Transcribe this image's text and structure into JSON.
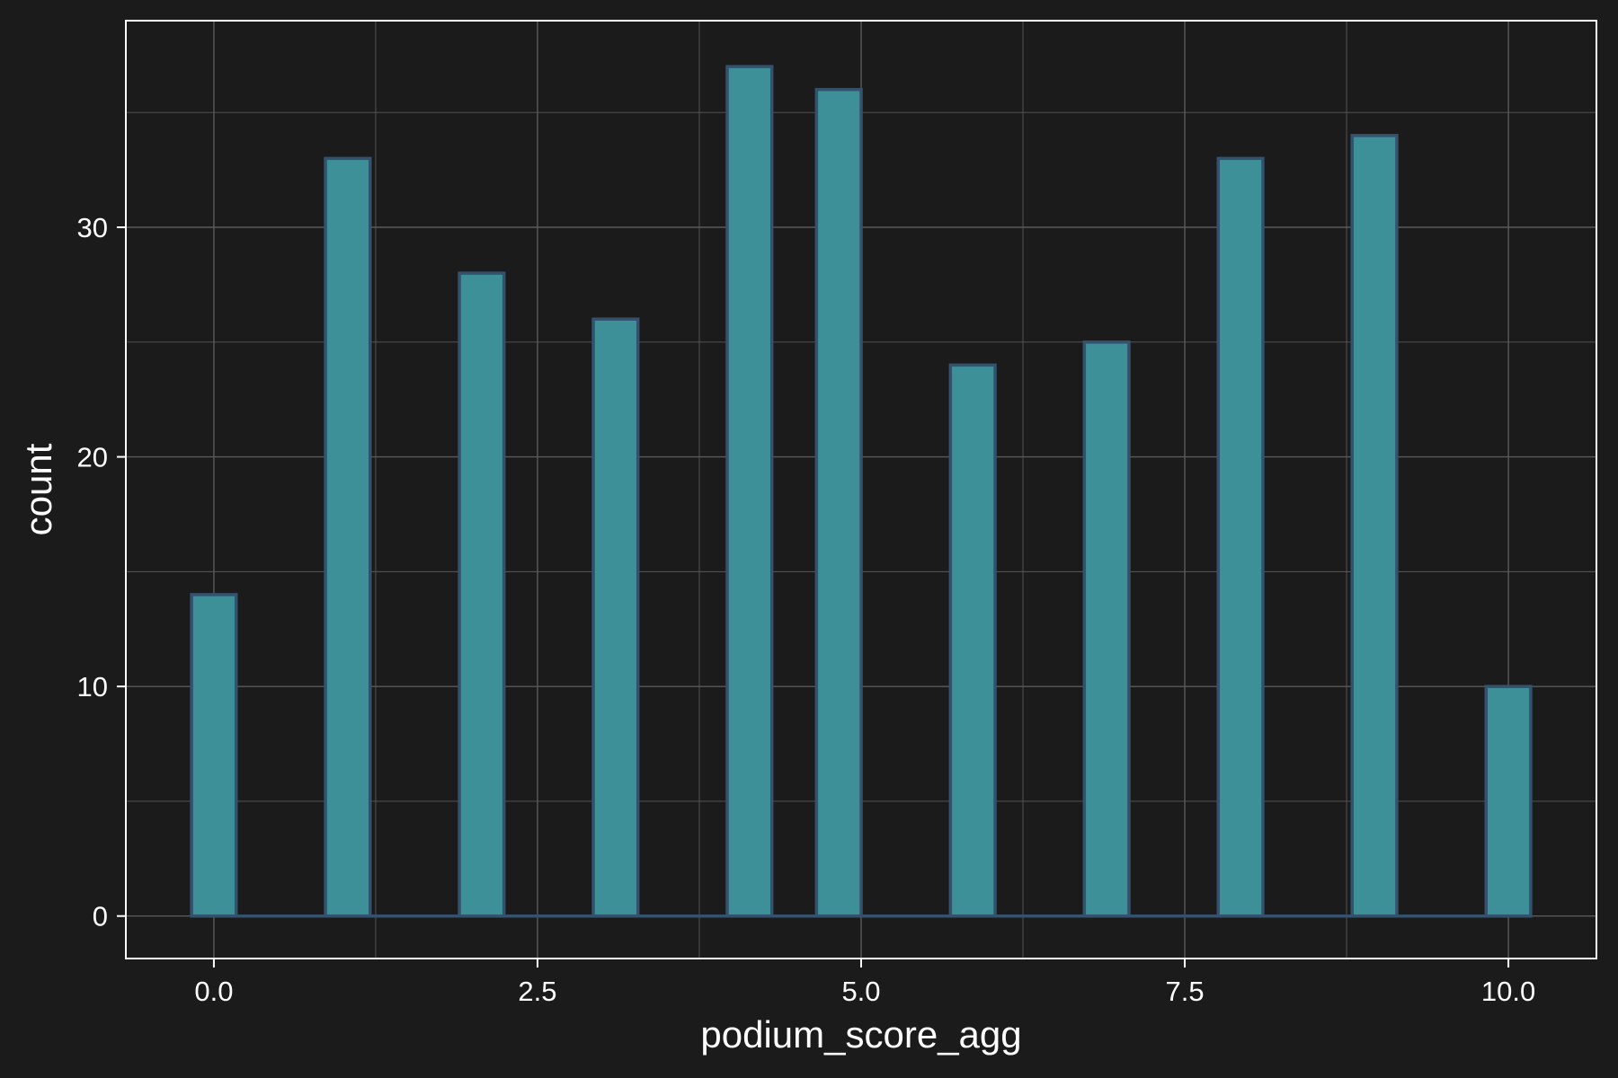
{
  "chart_data": {
    "type": "bar",
    "title": "",
    "xlabel": "podium_score_agg",
    "ylabel": "count",
    "x": [
      0,
      1,
      2,
      3,
      4,
      5,
      6,
      7,
      8,
      9,
      10
    ],
    "values": [
      14,
      33,
      28,
      26,
      37,
      36,
      24,
      25,
      33,
      34,
      10
    ],
    "bins": [
      {
        "start": -0.1724,
        "end": 0.1724,
        "count": 14
      },
      {
        "start": 0.8621,
        "end": 1.2069,
        "count": 33
      },
      {
        "start": 1.8966,
        "end": 2.2414,
        "count": 28
      },
      {
        "start": 2.931,
        "end": 3.2759,
        "count": 26
      },
      {
        "start": 3.9655,
        "end": 4.3103,
        "count": 37
      },
      {
        "start": 4.6552,
        "end": 5.0,
        "count": 36
      },
      {
        "start": 5.6897,
        "end": 6.0345,
        "count": 24
      },
      {
        "start": 6.7241,
        "end": 7.069,
        "count": 25
      },
      {
        "start": 7.7586,
        "end": 8.1034,
        "count": 33
      },
      {
        "start": 8.7931,
        "end": 9.1379,
        "count": 34
      },
      {
        "start": 9.8276,
        "end": 10.1724,
        "count": 10
      }
    ],
    "xlim": [
      -0.68,
      10.68
    ],
    "ylim": [
      -1.85,
      39.0
    ],
    "x_ticks": [
      0,
      2.5,
      5,
      7.5,
      10
    ],
    "x_tick_labels": [
      "0.0",
      "2.5",
      "5.0",
      "7.5",
      "10.0"
    ],
    "x_minor_ticks": [
      1.25,
      3.75,
      6.25,
      8.75
    ],
    "y_ticks": [
      0,
      10,
      20,
      30
    ],
    "y_tick_labels": [
      "0",
      "10",
      "20",
      "30"
    ],
    "y_minor_ticks": [
      5,
      15,
      25,
      35
    ],
    "grid": true,
    "colors": {
      "background": "#1b1b1b",
      "panel": "#1b1b1b",
      "grid": "#5a5a5a",
      "panel_border": "#ffffff",
      "bar_fill": "#3e9098",
      "bar_outline": "#34526e",
      "text": "#ffffff"
    }
  }
}
